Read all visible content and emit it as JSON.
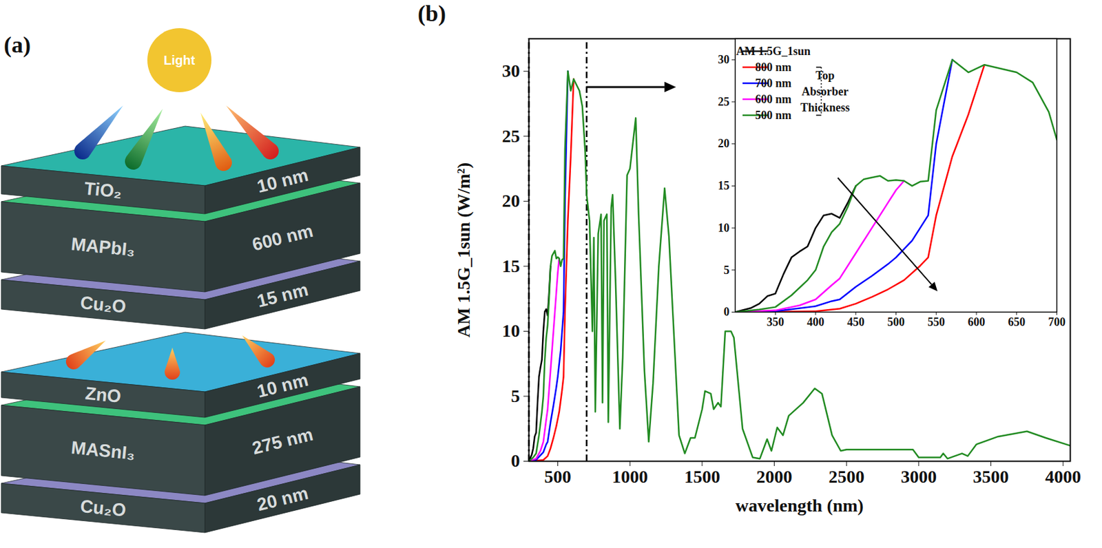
{
  "diagram": {
    "panel_label": "(a)",
    "light": "Light",
    "layers": [
      {
        "name": "TiO₂",
        "thickness": "10 nm"
      },
      {
        "name": "MAPbI₃",
        "thickness": "600 nm"
      },
      {
        "name": "Cu₂O",
        "thickness": "15 nm"
      },
      {
        "name": "ZnO",
        "thickness": "10 nm"
      },
      {
        "name": "MASnI₃",
        "thickness": "275 nm"
      },
      {
        "name": "Cu₂O",
        "thickness": "20 nm"
      }
    ]
  },
  "chart_data": [
    {
      "type": "line",
      "panel_label": "(b)",
      "x_label": "wavelength (nm)",
      "y_label": "AM 1.5G_1sun (W/m²)",
      "xlim": [
        300,
        4050
      ],
      "xticks": [
        500,
        1000,
        1500,
        2000,
        2500,
        3000,
        3500,
        4000
      ],
      "ylim": [
        0,
        32.5
      ],
      "yticks": [
        0,
        5,
        10,
        15,
        20,
        25,
        30
      ],
      "series": [
        {
          "color": "#000000",
          "x": [
            300,
            320,
            330,
            340,
            350,
            360,
            370,
            380,
            390,
            400,
            410,
            420,
            430,
            440,
            450
          ],
          "values": [
            0,
            0.5,
            1,
            1.9,
            2.2,
            4.5,
            6.5,
            7.2,
            7.8,
            10,
            11.5,
            11.7,
            11.2,
            13,
            15
          ]
        },
        {
          "color": "#ff0000",
          "x": [
            300,
            400,
            430,
            450,
            470,
            490,
            510,
            530,
            540,
            550,
            570,
            590,
            610
          ],
          "values": [
            0,
            0.1,
            0.4,
            1,
            1.8,
            2.7,
            3.8,
            5.5,
            6.5,
            11.5,
            18.5,
            23.5,
            29.4
          ]
        },
        {
          "color": "#0000ff",
          "x": [
            300,
            350,
            400,
            420,
            430,
            450,
            470,
            490,
            500,
            520,
            540,
            550,
            570
          ],
          "values": [
            0,
            0.1,
            0.7,
            1.3,
            1.5,
            3,
            4.3,
            5.7,
            6.5,
            8.5,
            11.5,
            20,
            30
          ]
        },
        {
          "color": "#ff00ff",
          "x": [
            300,
            350,
            380,
            400,
            420,
            430,
            450,
            470,
            490,
            500,
            510
          ],
          "values": [
            0,
            0.2,
            0.8,
            1.5,
            3.2,
            4,
            7,
            10,
            13,
            14.5,
            15.6
          ]
        },
        {
          "color": "#228b22",
          "x": [
            300,
            330,
            350,
            370,
            390,
            400,
            410,
            420,
            430,
            440,
            450,
            460,
            470,
            480,
            490,
            500,
            510,
            520,
            530,
            540,
            550,
            570,
            590,
            610,
            650,
            670,
            690,
            700,
            720,
            740,
            750,
            760,
            780,
            800,
            810,
            820,
            840,
            850,
            870,
            880,
            900,
            930,
            950,
            980,
            1000,
            1040,
            1060,
            1100,
            1130,
            1160,
            1200,
            1240,
            1270,
            1340,
            1380,
            1420,
            1450,
            1500,
            1520,
            1560,
            1580,
            1610,
            1630,
            1660,
            1700,
            1720,
            1780,
            1850,
            1900,
            1950,
            1980,
            2020,
            2060,
            2100,
            2200,
            2280,
            2330,
            2400,
            2460,
            2500,
            2960,
            3000,
            3150,
            3170,
            3200,
            3300,
            3340,
            3400,
            3550,
            3750,
            3880,
            4050
          ],
          "values": [
            0,
            0.3,
            0.6,
            2,
            3.8,
            5,
            7.8,
            9.5,
            10.5,
            12.5,
            15,
            15.8,
            16,
            16.2,
            15.6,
            15.7,
            15.6,
            15,
            15.5,
            15.6,
            24,
            30,
            28.5,
            29.4,
            28.5,
            27.3,
            23.8,
            20.5,
            18.5,
            10,
            17.2,
            3.8,
            17.5,
            19,
            4.5,
            18.5,
            19,
            3,
            19.5,
            20.5,
            14,
            2.5,
            8,
            22,
            22.5,
            26.4,
            19,
            7,
            1.5,
            6,
            15,
            21,
            17.3,
            2,
            0.6,
            1.8,
            1.8,
            4,
            5.4,
            5.2,
            4,
            4.5,
            4.2,
            10,
            10,
            9.5,
            2.5,
            0.3,
            0.2,
            1.7,
            0.8,
            2.6,
            2,
            3.5,
            4.5,
            5.6,
            5.2,
            2,
            0.8,
            0.9,
            0.9,
            0.3,
            0.3,
            0.6,
            0.2,
            0.6,
            0.4,
            1.3,
            1.9,
            2.3,
            1.8,
            1.2
          ]
        }
      ]
    },
    {
      "type": "line",
      "legend": "top-left",
      "annotation": "Top Absorber Thickness",
      "xlim": [
        300,
        700
      ],
      "xticks": [
        350,
        400,
        450,
        500,
        550,
        600,
        650,
        700
      ],
      "ylim": [
        0,
        32.5
      ],
      "yticks": [
        0,
        5,
        10,
        15,
        20,
        25,
        30
      ],
      "series": [
        {
          "name": "AM 1.5G_1sun",
          "color": "#000000",
          "x": [
            300,
            320,
            330,
            340,
            350,
            360,
            370,
            380,
            390,
            400,
            410,
            420,
            430,
            440,
            450
          ],
          "values": [
            0,
            0.5,
            1,
            1.9,
            2.2,
            4.5,
            6.5,
            7.2,
            7.8,
            10,
            11.5,
            11.7,
            11.2,
            13,
            15
          ]
        },
        {
          "name": "800 nm",
          "color": "#ff0000",
          "x": [
            300,
            400,
            430,
            450,
            470,
            490,
            510,
            530,
            540,
            550,
            570,
            590,
            610
          ],
          "values": [
            0,
            0.1,
            0.4,
            1,
            1.8,
            2.7,
            3.8,
            5.5,
            6.5,
            11.5,
            18.5,
            23.5,
            29.4
          ]
        },
        {
          "name": "700 nm",
          "color": "#0000ff",
          "x": [
            300,
            350,
            400,
            420,
            430,
            450,
            470,
            490,
            500,
            520,
            540,
            550,
            570
          ],
          "values": [
            0,
            0.1,
            0.7,
            1.3,
            1.5,
            3,
            4.3,
            5.7,
            6.5,
            8.5,
            11.5,
            20,
            30
          ]
        },
        {
          "name": "600 nm",
          "color": "#ff00ff",
          "x": [
            300,
            350,
            380,
            400,
            420,
            430,
            450,
            470,
            490,
            500,
            510
          ],
          "values": [
            0,
            0.2,
            0.8,
            1.5,
            3.2,
            4,
            7,
            10,
            13,
            14.5,
            15.6
          ]
        },
        {
          "name": "500 nm",
          "color": "#228b22",
          "x": [
            300,
            330,
            350,
            370,
            390,
            400,
            410,
            420,
            430,
            440,
            450,
            460,
            470,
            480,
            490,
            500,
            510,
            520,
            530,
            540,
            550,
            570,
            590,
            610,
            650,
            670,
            690,
            700
          ],
          "values": [
            0,
            0.3,
            0.6,
            2,
            3.8,
            5,
            7.8,
            9.5,
            10.5,
            12.5,
            15,
            15.8,
            16,
            16.2,
            15.6,
            15.7,
            15.6,
            15,
            15.5,
            15.6,
            24,
            30,
            28.5,
            29.4,
            28.5,
            27.3,
            23.8,
            20.5
          ]
        }
      ]
    }
  ]
}
